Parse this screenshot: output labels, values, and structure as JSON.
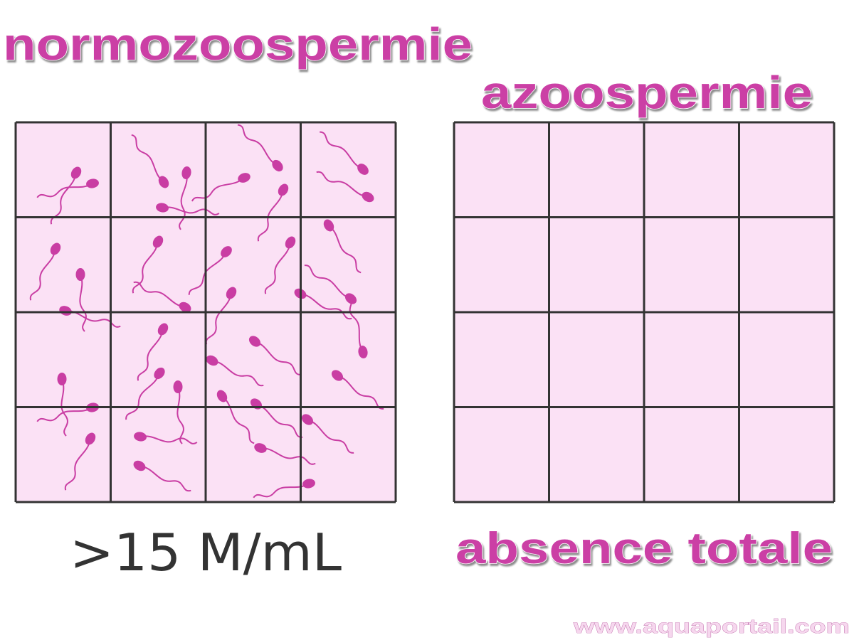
{
  "left": {
    "title": "normozoospermie",
    "caption": ">15 M/mL"
  },
  "right": {
    "title": "azoospermie",
    "caption": "absence totale"
  },
  "watermark": "www.aquaportail.com"
}
